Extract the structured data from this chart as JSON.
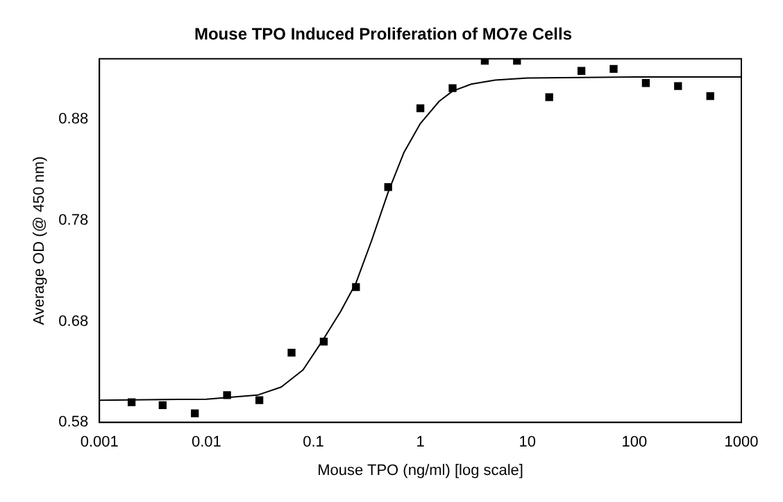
{
  "chart_data": {
    "type": "scatter",
    "title": "Mouse TPO Induced Proliferation of MO7e Cells",
    "xlabel": "Mouse TPO (ng/ml) [log scale]",
    "ylabel": "Average OD (@ 450 nm)",
    "log": "x",
    "grid": false,
    "legend": false,
    "marker": "square",
    "xlim": [
      0.001,
      1000
    ],
    "xticks": [
      0.001,
      0.01,
      0.1,
      1,
      10,
      100,
      1000
    ],
    "ylim": [
      0.58,
      0.94
    ],
    "yticks": [
      0.58,
      0.68,
      0.78,
      0.88
    ],
    "series": [
      {
        "color": "#000000",
        "x": [
          0.002,
          0.0039,
          0.0078,
          0.0156,
          0.03125,
          0.0625,
          0.125,
          0.25,
          0.5,
          1,
          2,
          4,
          8,
          16,
          32,
          64,
          128,
          256,
          512
        ],
        "values": [
          0.6,
          0.597,
          0.589,
          0.607,
          0.602,
          0.649,
          0.66,
          0.714,
          0.813,
          0.891,
          0.911,
          0.938,
          0.938,
          0.902,
          0.928,
          0.93,
          0.916,
          0.913,
          0.903
        ]
      },
      {
        "type": "line",
        "color": "#000000",
        "marker": "none",
        "line_style": "solid",
        "x": [
          0.001,
          0.01,
          0.03,
          0.05,
          0.08,
          0.12,
          0.18,
          0.25,
          0.35,
          0.5,
          0.7,
          1,
          1.5,
          2,
          3,
          5,
          10,
          100,
          1000
        ],
        "values": [
          0.602,
          0.603,
          0.607,
          0.615,
          0.632,
          0.66,
          0.69,
          0.718,
          0.76,
          0.808,
          0.847,
          0.876,
          0.898,
          0.908,
          0.915,
          0.919,
          0.921,
          0.922,
          0.922
        ]
      }
    ]
  }
}
